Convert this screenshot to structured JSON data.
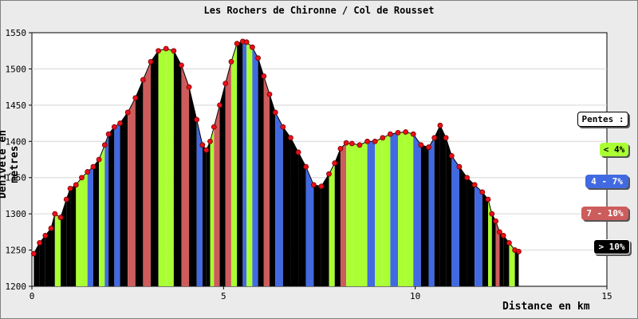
{
  "chart_data": {
    "type": "area",
    "title": "Les Rochers de Chironne / Col de Rousset",
    "xlabel": "Distance en km",
    "ylabel": "Dénivelé en mètres",
    "xlim": [
      0,
      15
    ],
    "ylim": [
      1200,
      1550
    ],
    "x_ticks": [
      "0",
      "5",
      "10",
      "15"
    ],
    "y_ticks": [
      "1200",
      "1250",
      "1300",
      "1350",
      "1400",
      "1450",
      "1500",
      "1550"
    ],
    "grid": "horizontal",
    "legend_position": "right",
    "legend": {
      "title": "Pentes :",
      "entries": [
        {
          "label": "< 4%",
          "color": "#aaff33"
        },
        {
          "label": "4 - 7%",
          "color": "#4169e1"
        },
        {
          "label": "7 - 10%",
          "color": "#cd5c5c"
        },
        {
          "label": "> 10%",
          "color": "#000000"
        }
      ]
    },
    "profile": {
      "x": [
        0.05,
        0.2,
        0.35,
        0.5,
        0.6,
        0.75,
        0.9,
        1.0,
        1.15,
        1.3,
        1.45,
        1.6,
        1.75,
        1.9,
        2.0,
        2.15,
        2.3,
        2.5,
        2.7,
        2.9,
        3.1,
        3.3,
        3.5,
        3.7,
        3.9,
        4.1,
        4.3,
        4.45,
        4.55,
        4.65,
        4.75,
        4.9,
        5.05,
        5.2,
        5.35,
        5.5,
        5.6,
        5.75,
        5.9,
        6.05,
        6.2,
        6.35,
        6.55,
        6.75,
        6.95,
        7.15,
        7.35,
        7.55,
        7.75,
        7.9,
        8.05,
        8.2,
        8.35,
        8.55,
        8.75,
        8.95,
        9.15,
        9.35,
        9.55,
        9.75,
        9.95,
        10.15,
        10.35,
        10.5,
        10.65,
        10.8,
        10.95,
        11.15,
        11.35,
        11.55,
        11.75,
        11.9,
        12.0,
        12.1,
        12.2,
        12.3,
        12.45,
        12.6,
        12.7
      ],
      "y": [
        1245,
        1260,
        1270,
        1280,
        1300,
        1295,
        1320,
        1335,
        1340,
        1350,
        1358,
        1365,
        1375,
        1395,
        1410,
        1420,
        1425,
        1440,
        1460,
        1485,
        1510,
        1525,
        1528,
        1525,
        1505,
        1475,
        1430,
        1395,
        1388,
        1400,
        1420,
        1450,
        1480,
        1510,
        1535,
        1538,
        1537,
        1530,
        1515,
        1490,
        1465,
        1440,
        1420,
        1405,
        1385,
        1365,
        1340,
        1338,
        1355,
        1370,
        1390,
        1398,
        1397,
        1395,
        1400,
        1400,
        1405,
        1410,
        1412,
        1413,
        1410,
        1395,
        1392,
        1405,
        1422,
        1405,
        1380,
        1365,
        1350,
        1340,
        1330,
        1320,
        1300,
        1290,
        1275,
        1270,
        1260,
        1250,
        1248
      ],
      "slope_classes": [
        "gt10",
        "gt10",
        "gt10",
        "gt10",
        "lt4",
        "gt10",
        "gt10",
        "gt10",
        "lt4",
        "lt4",
        "4-7",
        "gt10",
        "lt4",
        "4-7",
        "gt10",
        "4-7",
        "gt10",
        "7-10",
        "gt10",
        "7-10",
        "gt10",
        "lt4",
        "lt4",
        "gt10",
        "7-10",
        "gt10",
        "4-7",
        "gt10",
        "gt10",
        "lt4",
        "7-10",
        "gt10",
        "7-10",
        "lt4",
        "gt10",
        "4-7",
        "lt4",
        "4-7",
        "gt10",
        "7-10",
        "gt10",
        "4-7",
        "gt10",
        "gt10",
        "gt10",
        "4-7",
        "gt10",
        "gt10",
        "lt4",
        "gt10",
        "7-10",
        "lt4",
        "lt4",
        "lt4",
        "4-7",
        "lt4",
        "lt4",
        "4-7",
        "lt4",
        "lt4",
        "4-7",
        "gt10",
        "4-7",
        "gt10",
        "gt10",
        "gt10",
        "4-7",
        "gt10",
        "gt10",
        "4-7",
        "gt10",
        "lt4",
        "gt10",
        "7-10",
        "gt10",
        "gt10",
        "lt4",
        "gt10"
      ]
    }
  }
}
